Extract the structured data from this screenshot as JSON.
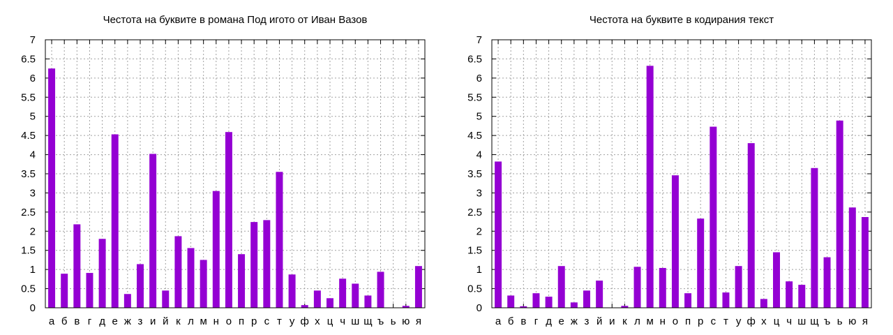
{
  "chart_data": [
    {
      "type": "bar",
      "title": "Честота на буквите в романа Под игото от Иван Вазов",
      "xlabel": "",
      "ylabel": "",
      "ylim": [
        0,
        7
      ],
      "yticks": [
        "0",
        "0.5",
        "1",
        "1.5",
        "2",
        "2.5",
        "3",
        "3.5",
        "4",
        "4.5",
        "5",
        "5.5",
        "6",
        "6.5",
        "7"
      ],
      "grid": true,
      "legend": "none",
      "bar_color": "#9400d3",
      "categories": [
        "а",
        "б",
        "в",
        "г",
        "д",
        "е",
        "ж",
        "з",
        "и",
        "й",
        "к",
        "л",
        "м",
        "н",
        "о",
        "п",
        "р",
        "с",
        "т",
        "у",
        "ф",
        "х",
        "ц",
        "ч",
        "ш",
        "щ",
        "ъ",
        "ь",
        "ю",
        "я"
      ],
      "values": [
        6.25,
        0.89,
        2.18,
        0.91,
        1.8,
        4.53,
        0.36,
        1.14,
        4.02,
        0.45,
        1.87,
        1.56,
        1.25,
        3.05,
        4.59,
        1.4,
        2.24,
        2.29,
        3.55,
        0.87,
        0.07,
        0.45,
        0.25,
        0.76,
        0.63,
        0.32,
        0.94,
        0.0,
        0.05,
        1.09
      ]
    },
    {
      "type": "bar",
      "title": "Честота на буквите в кодирания текст",
      "xlabel": "",
      "ylabel": "",
      "ylim": [
        0,
        7
      ],
      "yticks": [
        "0",
        "0.5",
        "1",
        "1.5",
        "2",
        "2.5",
        "3",
        "3.5",
        "4",
        "4.5",
        "5",
        "5.5",
        "6",
        "6.5",
        "7"
      ],
      "grid": true,
      "legend": "none",
      "bar_color": "#9400d3",
      "categories": [
        "а",
        "б",
        "в",
        "г",
        "д",
        "е",
        "ж",
        "з",
        "й",
        "и",
        "к",
        "л",
        "м",
        "н",
        "о",
        "п",
        "р",
        "с",
        "т",
        "у",
        "ф",
        "х",
        "ц",
        "ч",
        "ш",
        "щ",
        "ъ",
        "ь",
        "ю",
        "я"
      ],
      "values": [
        3.82,
        0.32,
        0.04,
        0.38,
        0.29,
        1.09,
        0.14,
        0.45,
        0.71,
        0.0,
        0.05,
        1.07,
        6.32,
        1.04,
        3.46,
        0.38,
        2.33,
        4.73,
        0.4,
        1.09,
        4.3,
        0.23,
        1.45,
        0.69,
        0.6,
        3.65,
        1.32,
        4.89,
        2.62,
        2.37
      ]
    }
  ]
}
